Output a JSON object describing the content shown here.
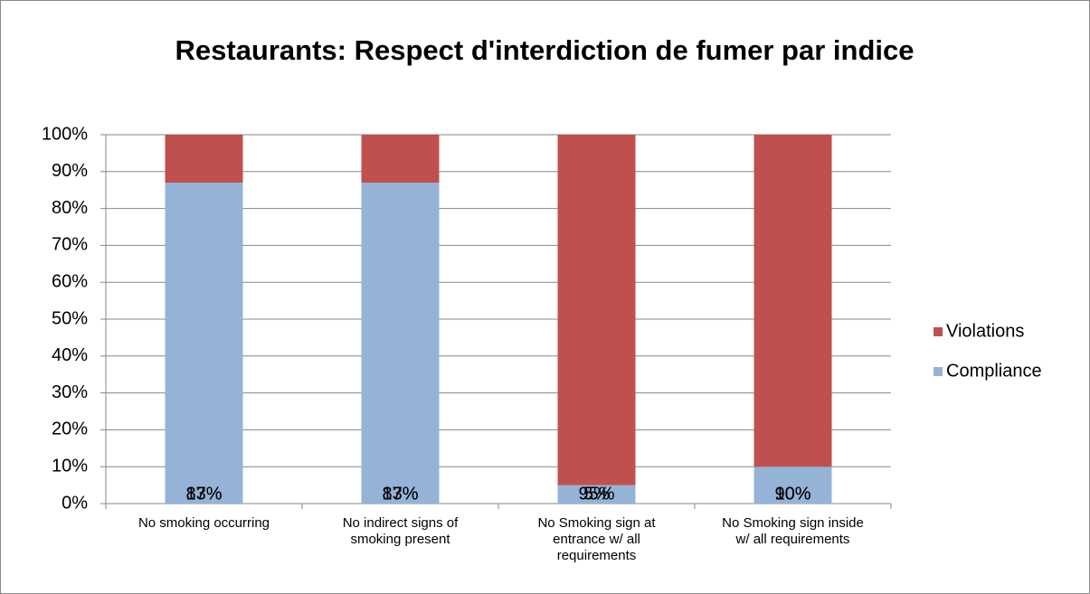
{
  "chart_data": {
    "type": "stacked_bar",
    "title": "Restaurants: Respect d'interdiction de fumer par indice",
    "categories": [
      "No smoking occurring",
      "No indirect signs of smoking present",
      "No Smoking sign at entrance w/ all requirements",
      "No Smoking sign inside w/ all requirements"
    ],
    "series": [
      {
        "name": "Compliance",
        "color": "#95b3d7",
        "values": [
          87,
          87,
          5,
          10
        ],
        "value_labels": [
          "87%",
          "87%",
          "5%",
          "10%"
        ]
      },
      {
        "name": "Violations",
        "color": "#c0504d",
        "values": [
          13,
          13,
          95,
          90
        ],
        "value_labels": [
          "13%",
          "13%",
          "95%",
          "90%"
        ]
      }
    ],
    "ylim": [
      0,
      100
    ],
    "yticks": [
      {
        "value": 0,
        "label": "0%"
      },
      {
        "value": 10,
        "label": "10%"
      },
      {
        "value": 20,
        "label": "20%"
      },
      {
        "value": 30,
        "label": "30%"
      },
      {
        "value": 40,
        "label": "40%"
      },
      {
        "value": 50,
        "label": "50%"
      },
      {
        "value": 60,
        "label": "60%"
      },
      {
        "value": 70,
        "label": "70%"
      },
      {
        "value": 80,
        "label": "80%"
      },
      {
        "value": 90,
        "label": "90%"
      },
      {
        "value": 100,
        "label": "100%"
      }
    ],
    "grid": true,
    "legend": "right"
  }
}
